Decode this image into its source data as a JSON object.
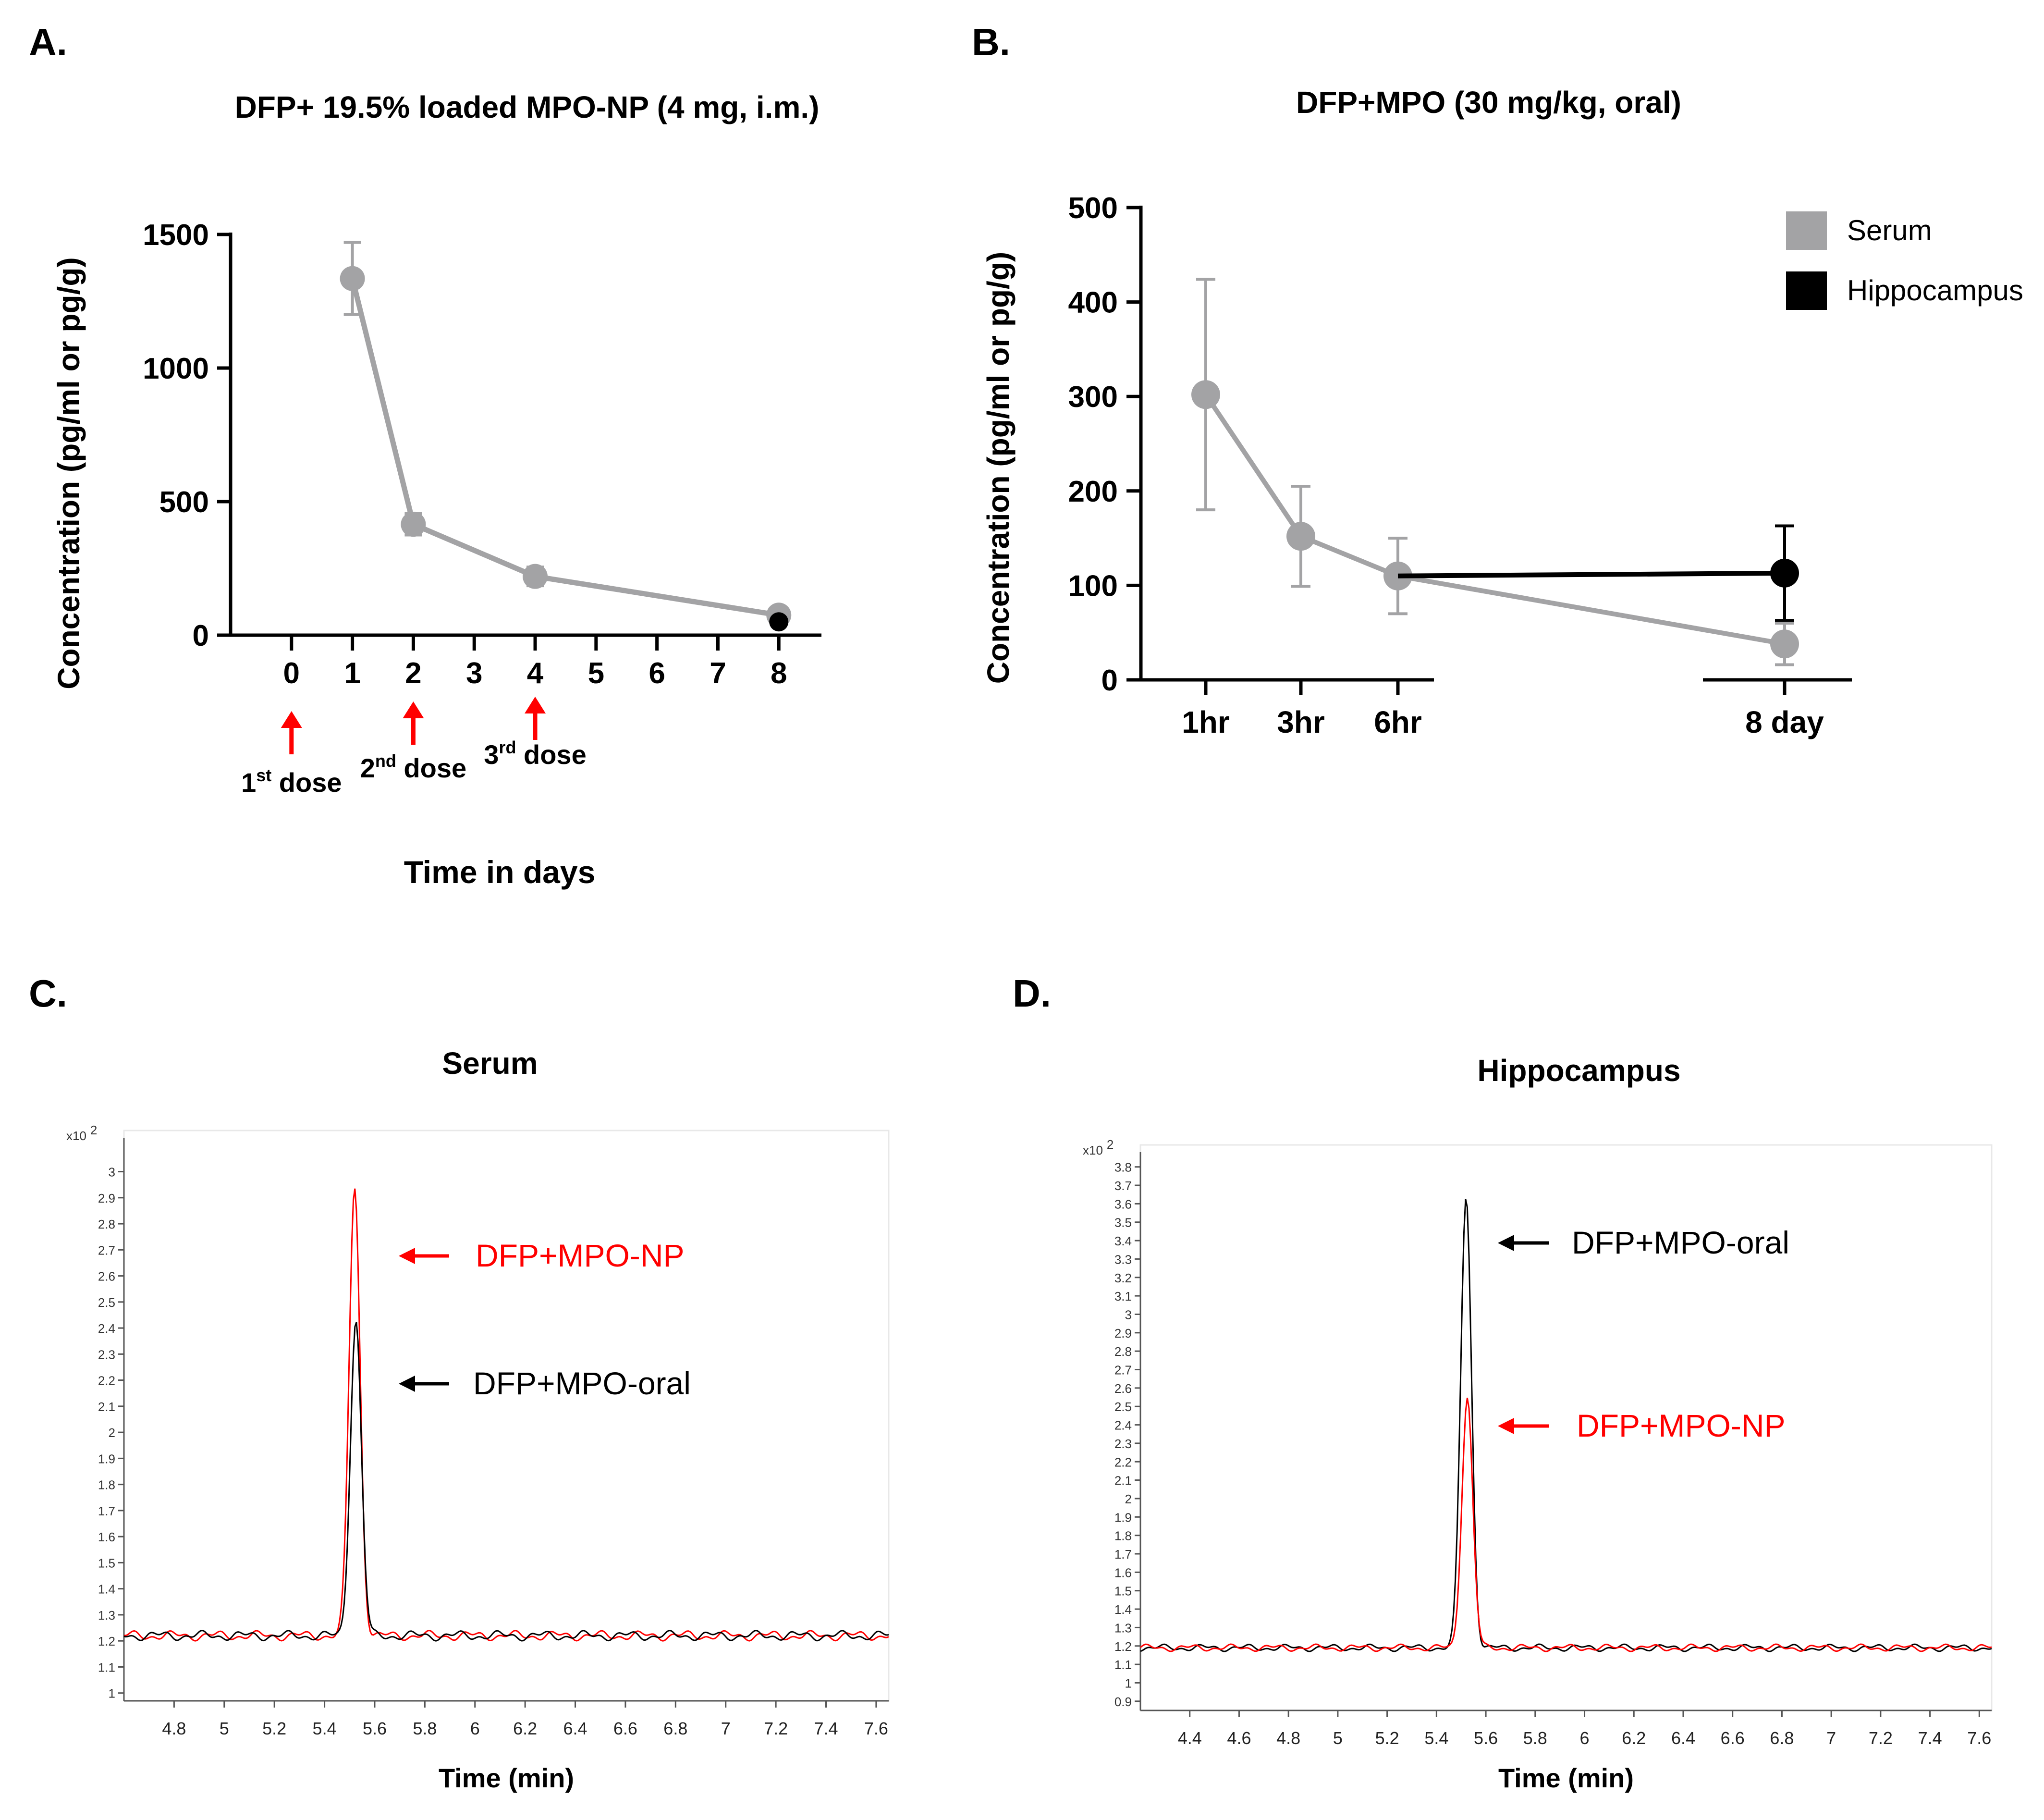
{
  "chart_data": [
    {
      "panel": "A.",
      "type": "line",
      "title": "DFP+ 19.5% loaded MPO-NP (4 mg, i.m.)",
      "xlabel": "Time in days",
      "ylabel": "Concentration (pg/ml or pg/g)",
      "x_ticks": [
        "0",
        "1",
        "2",
        "3",
        "4",
        "5",
        "6",
        "7",
        "8"
      ],
      "y_ticks": [
        "0",
        "500",
        "1000",
        "1500"
      ],
      "ylim": [
        0,
        1500
      ],
      "xlim": [
        -1,
        8.7
      ],
      "series": [
        {
          "name": "Serum",
          "color": "#a3a3a5",
          "x": [
            1,
            2,
            4,
            8
          ],
          "values": [
            1335,
            415,
            220,
            75
          ],
          "err": [
            135,
            40,
            35,
            15
          ]
        },
        {
          "name": "Hippocampus",
          "color": "#000000",
          "x": [
            8
          ],
          "values": [
            50
          ],
          "err": [
            0
          ]
        }
      ],
      "annotations": [
        {
          "x": 0,
          "label_main": "1",
          "label_sup": "st",
          "label_rest": " dose",
          "color": "#ff0000"
        },
        {
          "x": 2,
          "label_main": "2",
          "label_sup": "nd",
          "label_rest": " dose",
          "color": "#ff0000"
        },
        {
          "x": 4,
          "label_main": "3",
          "label_sup": "rd",
          "label_rest": " dose",
          "color": "#ff0000"
        }
      ]
    },
    {
      "panel": "B.",
      "type": "line",
      "title": "DFP+MPO (30 mg/kg, oral)",
      "xlabel": "",
      "ylabel": "Concentration (pg/ml or pg/g)",
      "categories": [
        "1hr",
        "3hr",
        "6hr",
        "8 day"
      ],
      "y_ticks": [
        "0",
        "100",
        "200",
        "300",
        "400",
        "500"
      ],
      "ylim": [
        0,
        500
      ],
      "legend": {
        "position": "top-right",
        "entries": [
          {
            "label": "Serum",
            "color": "#a3a3a5"
          },
          {
            "label": "Hippocampus",
            "color": "#000000"
          }
        ]
      },
      "series": [
        {
          "name": "Serum",
          "color": "#a3a3a5",
          "values": [
            302,
            152,
            110,
            38
          ],
          "err": [
            122,
            53,
            40,
            22
          ]
        },
        {
          "name": "Hippocampus",
          "color": "#000000",
          "values": [
            null,
            null,
            110,
            113
          ],
          "err": [
            null,
            null,
            0,
            50
          ]
        }
      ]
    },
    {
      "panel": "C.",
      "type": "line",
      "title": "Serum",
      "xlabel": "Time (min)",
      "y_multiplier": "x10",
      "y_multiplier_exp": "2",
      "x_ticks": [
        "4.8",
        "5",
        "5.2",
        "5.4",
        "5.6",
        "5.8",
        "6",
        "6.2",
        "6.4",
        "6.6",
        "6.8",
        "7",
        "7.2",
        "7.4",
        "7.6"
      ],
      "y_ticks": [
        "1",
        "1.1",
        "1.2",
        "1.3",
        "1.4",
        "1.5",
        "1.6",
        "1.7",
        "1.8",
        "1.9",
        "2",
        "2.1",
        "2.2",
        "2.3",
        "2.4",
        "2.5",
        "2.6",
        "2.7",
        "2.8",
        "2.9",
        "3"
      ],
      "xlim": [
        4.6,
        7.65
      ],
      "ylim": [
        0.97,
        3.13
      ],
      "baseline": 1.22,
      "peak_time": 5.52,
      "series": [
        {
          "name": "DFP+MPO-NP",
          "color": "#ff0000",
          "peak": 2.94
        },
        {
          "name": "DFP+MPO-oral",
          "color": "#000000",
          "peak": 2.43
        }
      ],
      "labels": [
        {
          "text": "DFP+MPO-NP",
          "color": "#ff0000"
        },
        {
          "text": "DFP+MPO-oral",
          "color": "#000000"
        }
      ]
    },
    {
      "panel": "D.",
      "type": "line",
      "title": "Hippocampus",
      "xlabel": "Time (min)",
      "y_multiplier": "x10",
      "y_multiplier_exp": "2",
      "x_ticks": [
        "4.4",
        "4.6",
        "4.8",
        "5",
        "5.2",
        "5.4",
        "5.6",
        "5.8",
        "6",
        "6.2",
        "6.4",
        "6.6",
        "6.8",
        "7",
        "7.2",
        "7.4",
        "7.6"
      ],
      "y_ticks": [
        "0.9",
        "1",
        "1.1",
        "1.2",
        "1.3",
        "1.4",
        "1.5",
        "1.6",
        "1.7",
        "1.8",
        "1.9",
        "2",
        "2.1",
        "2.2",
        "2.3",
        "2.4",
        "2.5",
        "2.6",
        "2.7",
        "2.8",
        "2.9",
        "3",
        "3.1",
        "3.2",
        "3.3",
        "3.4",
        "3.5",
        "3.6",
        "3.7",
        "3.8"
      ],
      "xlim": [
        4.2,
        7.65
      ],
      "ylim": [
        0.85,
        3.88
      ],
      "baseline": 1.19,
      "peak_time": 5.52,
      "series": [
        {
          "name": "DFP+MPO-oral",
          "color": "#000000",
          "peak": 3.64
        },
        {
          "name": "DFP+MPO-NP",
          "color": "#ff0000",
          "peak": 2.55
        }
      ],
      "labels": [
        {
          "text": "DFP+MPO-oral",
          "color": "#000000"
        },
        {
          "text": "DFP+MPO-NP",
          "color": "#ff0000"
        }
      ]
    }
  ]
}
